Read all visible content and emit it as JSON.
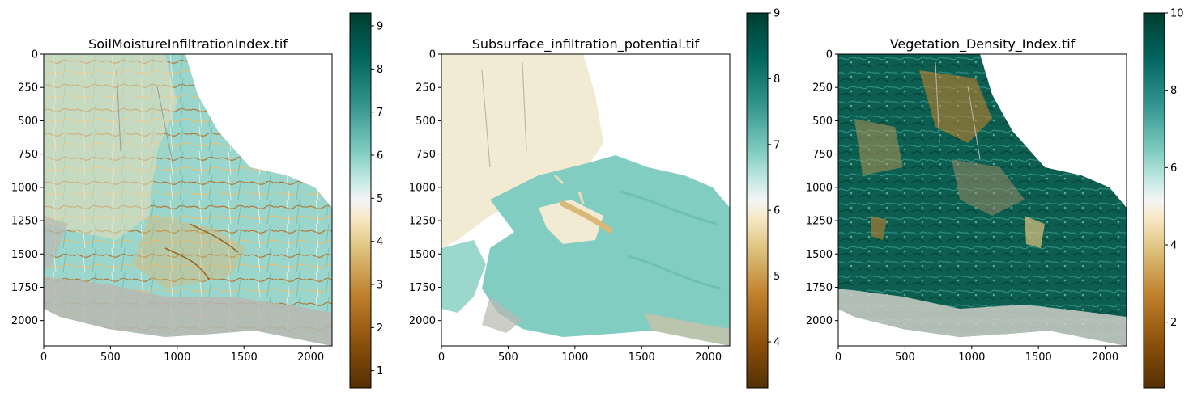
{
  "chart_data": [
    {
      "type": "heatmap",
      "title": "SoilMoistureInfiltrationIndex.tif",
      "xlim": [
        0,
        2160
      ],
      "ylim": [
        2190,
        0
      ],
      "x_ticks": [
        0,
        500,
        1000,
        1500,
        2000
      ],
      "y_ticks": [
        0,
        250,
        500,
        750,
        1000,
        1250,
        1500,
        1750,
        2000
      ],
      "colormap": "BrBG",
      "colorbar": {
        "min": 0.6,
        "max": 9.3,
        "ticks": [
          1,
          2,
          3,
          4,
          5,
          6,
          7,
          8,
          9
        ]
      },
      "description": "raster map, mostly teal/cream with brown drainage lines; data extent top-left to bottom-right"
    },
    {
      "type": "heatmap",
      "title": "Subsurface_infiltration_potential.tif",
      "xlim": [
        0,
        2160
      ],
      "ylim": [
        2190,
        0
      ],
      "x_ticks": [
        0,
        500,
        1000,
        1500,
        2000
      ],
      "y_ticks": [
        0,
        250,
        500,
        750,
        1000,
        1250,
        1500,
        1750,
        2000
      ],
      "colormap": "BrBG",
      "colorbar": {
        "min": 3.3,
        "max": 9.0,
        "ticks": [
          4,
          5,
          6,
          7,
          8,
          9
        ]
      },
      "description": "north-west cream zone, large teal zone to the south-east, tan streak near center"
    },
    {
      "type": "heatmap",
      "title": "Vegetation_Density_Index.tif",
      "xlim": [
        0,
        2160
      ],
      "ylim": [
        2190,
        0
      ],
      "x_ticks": [
        0,
        500,
        1000,
        1500,
        2000
      ],
      "y_ticks": [
        0,
        250,
        500,
        750,
        1000,
        1250,
        1500,
        1750,
        2000
      ],
      "colormap": "BrBG",
      "colorbar": {
        "min": 0.3,
        "max": 10.0,
        "ticks": [
          2,
          4,
          6,
          8,
          10
        ]
      },
      "description": "dense dark-green vegetation with brown patches in the north and center"
    }
  ],
  "colors": {
    "brbg_low": "#543005",
    "brbg_mid": "#f5f5f5",
    "brbg_high": "#003c30",
    "mask_gray": "#b8b8b0"
  }
}
